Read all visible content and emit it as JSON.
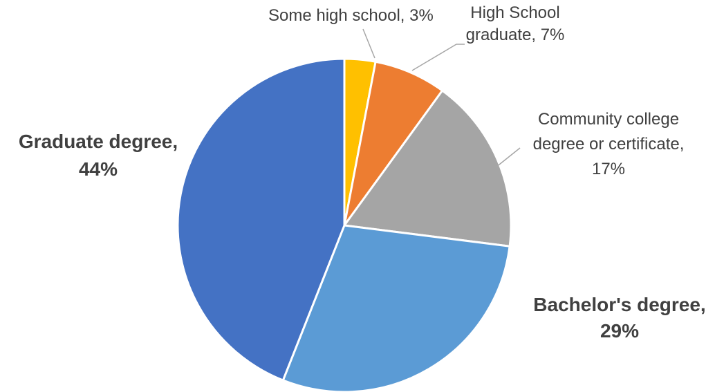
{
  "chart_data": {
    "type": "pie",
    "title": "",
    "categories": [
      "Some high school",
      "High School graduate",
      "Community college degree or certificate",
      "Bachelor's degree",
      "Graduate degree"
    ],
    "values": [
      3,
      7,
      17,
      29,
      44
    ],
    "unit": "%",
    "colors": [
      "#FFC000",
      "#ED7D31",
      "#A5A5A5",
      "#5B9BD5",
      "#4472C4"
    ],
    "start_angle_deg": 0,
    "direction": "clockwise",
    "legend": "none",
    "data_labels": [
      {
        "lines": [
          "Some high school, 3%"
        ],
        "bold": false,
        "leader_line": true
      },
      {
        "lines": [
          "High School",
          "graduate, 7%"
        ],
        "bold": false,
        "leader_line": true
      },
      {
        "lines": [
          "Community college",
          "degree or certificate,",
          "17%"
        ],
        "bold": false,
        "leader_line": true
      },
      {
        "lines": [
          "Bachelor's degree,",
          "29%"
        ],
        "bold": true,
        "leader_line": false
      },
      {
        "lines": [
          "Graduate degree,",
          "44%"
        ],
        "bold": true,
        "leader_line": false
      }
    ]
  }
}
